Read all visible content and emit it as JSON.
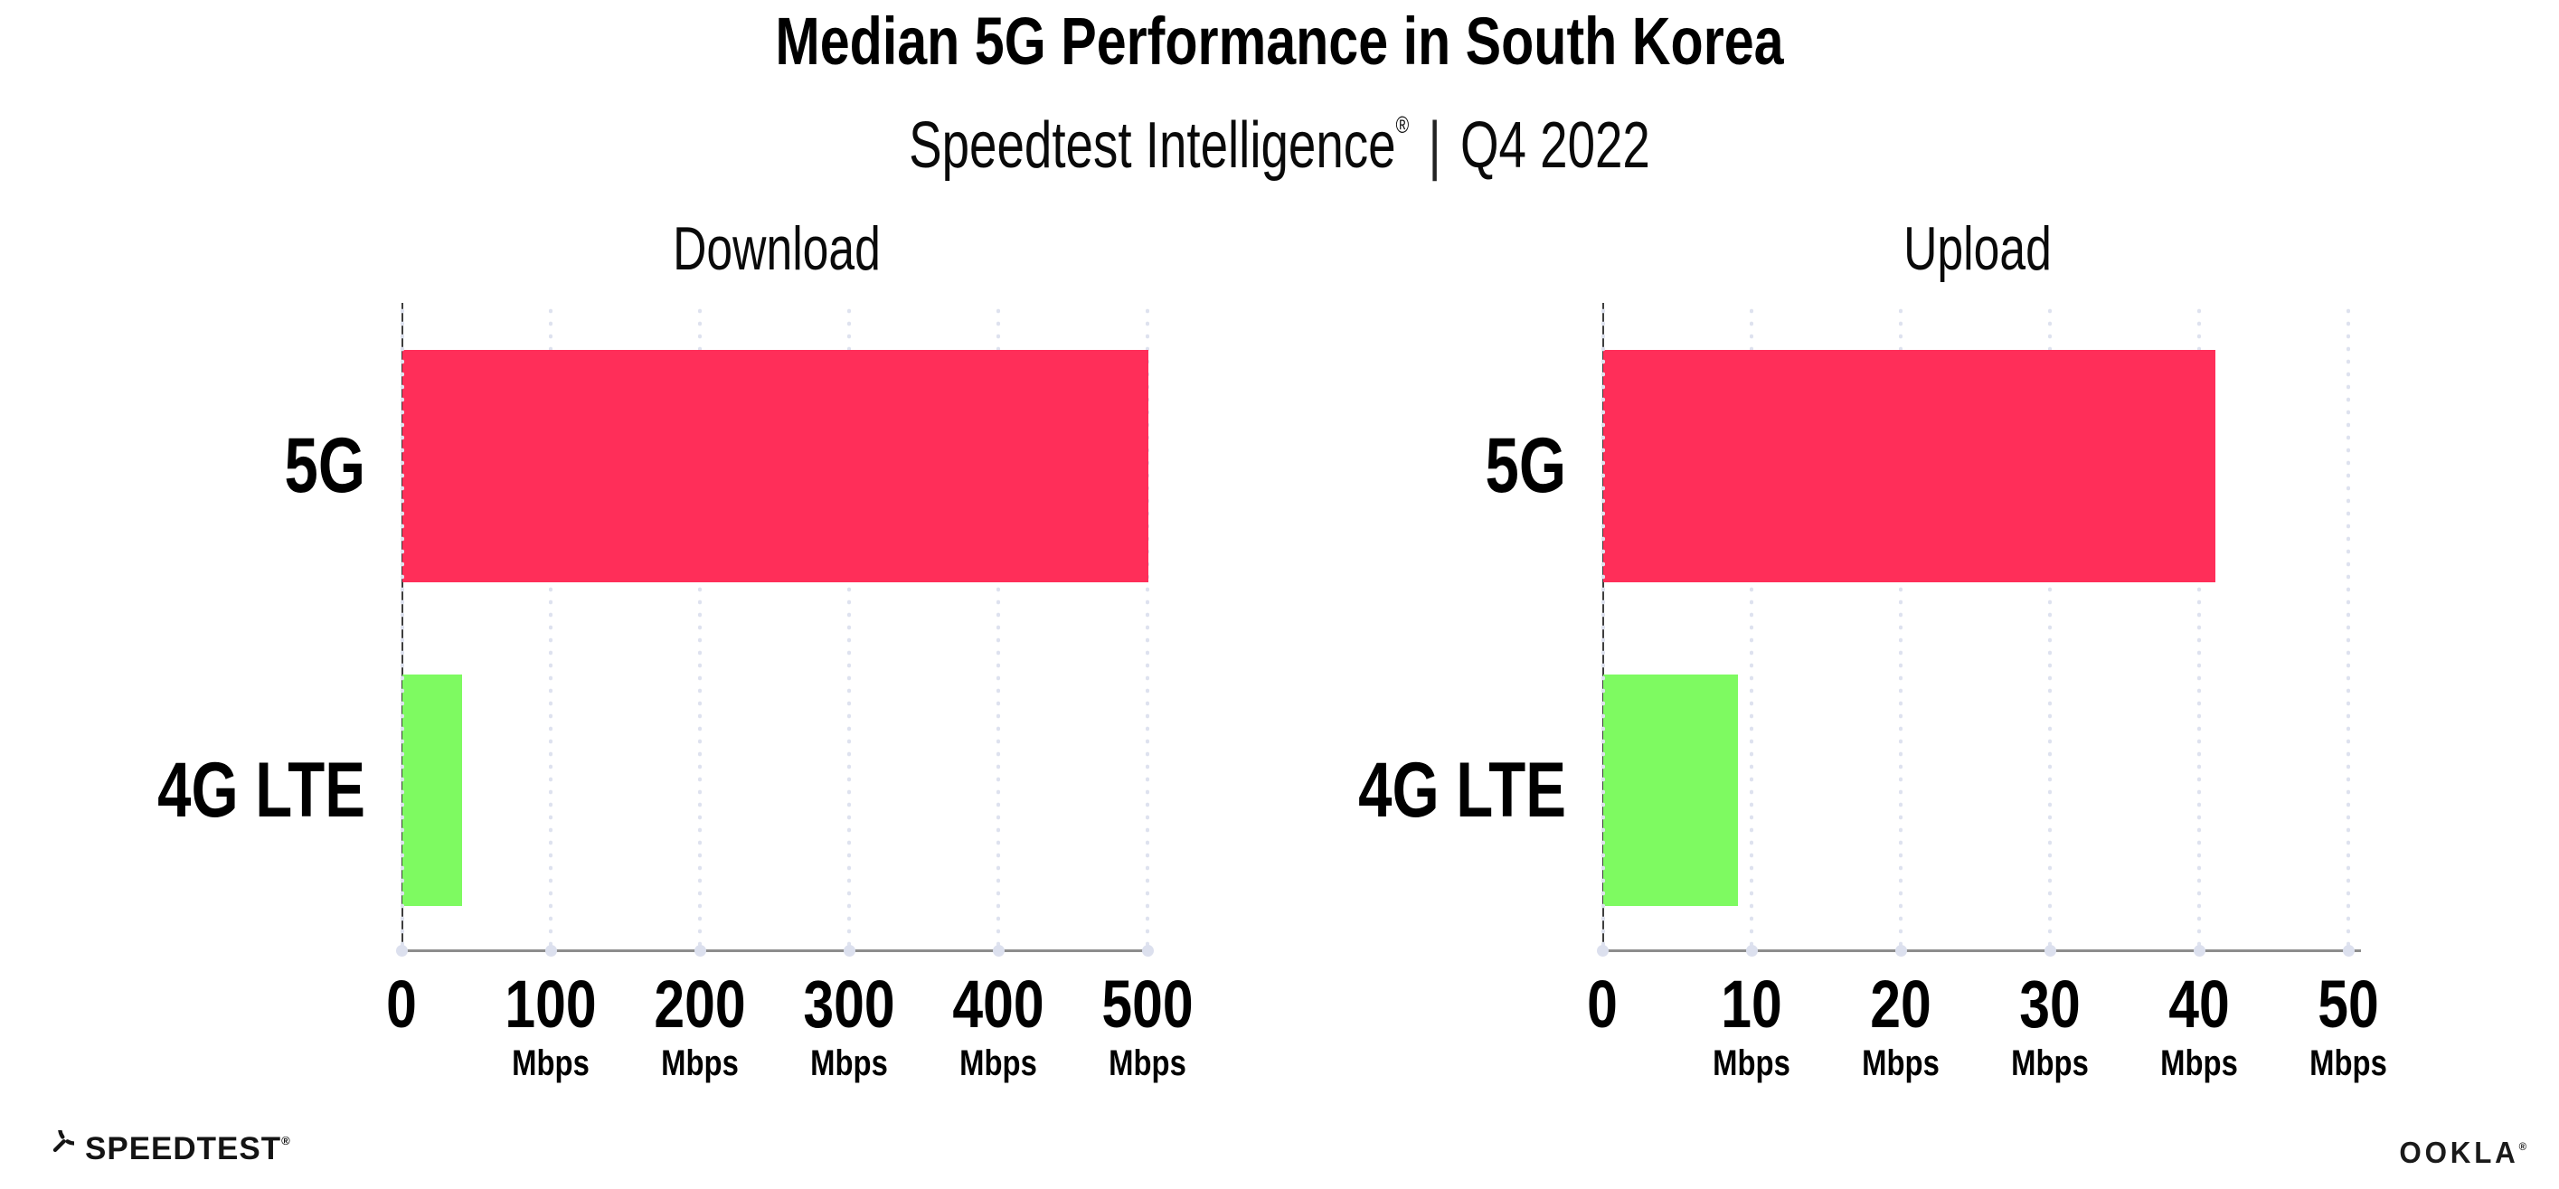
{
  "header": {
    "title": "Median 5G Performance in South Korea",
    "subtitle_brand": "Speedtest Intelligence",
    "subtitle_reg": "®",
    "subtitle_separator": "|",
    "subtitle_period": "Q4 2022"
  },
  "footer": {
    "speedtest_wordmark": "SPEEDTEST",
    "speedtest_reg": "®",
    "ookla_wordmark": "OOKLA",
    "ookla_reg": "®"
  },
  "colors": {
    "bar_5g": "#FF2E59",
    "bar_4g_lte": "#7EFA61",
    "x_axis": "#8D8D8D",
    "y_axis": "#3E3E3E",
    "grid_dot": "#DEE2EF",
    "text": "#000000",
    "background": "#FFFFFF"
  },
  "chart_data": {
    "type": "bar",
    "orientation": "horizontal",
    "title": "Median 5G Performance in South Korea",
    "subtitle": "Speedtest Intelligence® | Q4 2022",
    "unit": "Mbps",
    "grid": "vertical-dotted",
    "legend": "none",
    "series_colors": {
      "5G": "#FF2E59",
      "4G LTE": "#7EFA61"
    },
    "panels": [
      {
        "title": "Download",
        "categories": [
          "5G",
          "4G LTE"
        ],
        "values_mbps": [
          500,
          40
        ],
        "xlim": [
          0,
          500
        ],
        "tick_values": [
          0,
          100,
          200,
          300,
          400,
          500
        ],
        "tick_labels": [
          "0",
          "100",
          "200",
          "300",
          "400",
          "500"
        ],
        "tick_units": [
          "",
          "Mbps",
          "Mbps",
          "Mbps",
          "Mbps",
          "Mbps"
        ]
      },
      {
        "title": "Upload",
        "categories": [
          "5G",
          "4G LTE"
        ],
        "values_mbps": [
          41,
          9
        ],
        "xlim": [
          0,
          50
        ],
        "tick_values": [
          0,
          10,
          20,
          30,
          40,
          50
        ],
        "tick_labels": [
          "0",
          "10",
          "20",
          "30",
          "40",
          "50"
        ],
        "tick_units": [
          "",
          "Mbps",
          "Mbps",
          "Mbps",
          "Mbps",
          "Mbps"
        ]
      }
    ]
  }
}
